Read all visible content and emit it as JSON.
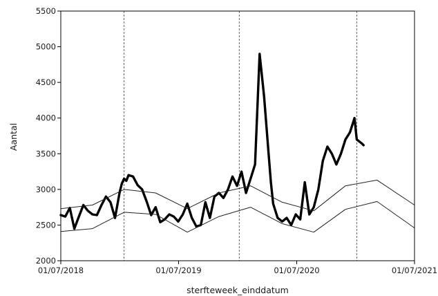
{
  "chart_data": {
    "type": "line",
    "title": "",
    "xlabel": "sterfteweek_einddatum",
    "ylabel": "Aantal",
    "x_range": [
      "2018-07-01",
      "2021-07-01"
    ],
    "x_ticks": [
      "01/07/2018",
      "01/07/2019",
      "01/07/2020",
      "01/07/2021"
    ],
    "ylim": [
      2000,
      5500
    ],
    "y_ticks": [
      2000,
      2500,
      3000,
      3500,
      4000,
      4500,
      5000,
      5500
    ],
    "grid": false,
    "legend": "none",
    "reference_lines_x": [
      "2019-01-13",
      "2020-01-05",
      "2021-01-03"
    ],
    "series": [
      {
        "role": "observed",
        "style": "thick-black",
        "x": [
          "2018-07-01",
          "2018-07-15",
          "2018-07-29",
          "2018-08-12",
          "2018-08-26",
          "2018-09-09",
          "2018-09-23",
          "2018-10-07",
          "2018-10-21",
          "2018-11-04",
          "2018-11-18",
          "2018-12-02",
          "2018-12-16",
          "2018-12-30",
          "2019-01-06",
          "2019-01-13",
          "2019-01-20",
          "2019-01-27",
          "2019-02-10",
          "2019-02-24",
          "2019-03-10",
          "2019-03-24",
          "2019-04-07",
          "2019-04-21",
          "2019-05-05",
          "2019-05-19",
          "2019-06-02",
          "2019-06-16",
          "2019-06-30",
          "2019-07-14",
          "2019-07-28",
          "2019-08-11",
          "2019-08-25",
          "2019-09-08",
          "2019-09-22",
          "2019-10-06",
          "2019-10-20",
          "2019-11-03",
          "2019-11-17",
          "2019-12-01",
          "2019-12-15",
          "2019-12-29",
          "2020-01-12",
          "2020-01-26",
          "2020-02-09",
          "2020-02-23",
          "2020-03-08",
          "2020-03-22",
          "2020-04-05",
          "2020-04-12",
          "2020-04-19",
          "2020-05-03",
          "2020-05-17",
          "2020-05-31",
          "2020-06-14",
          "2020-06-28",
          "2020-07-12",
          "2020-07-26",
          "2020-08-09",
          "2020-08-23",
          "2020-09-06",
          "2020-09-20",
          "2020-10-04",
          "2020-10-18",
          "2020-11-01",
          "2020-11-15",
          "2020-11-29",
          "2020-12-13",
          "2020-12-27",
          "2021-01-03",
          "2021-01-17",
          "2021-01-24"
        ],
        "y": [
          2640,
          2620,
          2740,
          2450,
          2620,
          2780,
          2700,
          2650,
          2640,
          2780,
          2900,
          2820,
          2600,
          2950,
          3080,
          3150,
          3120,
          3200,
          3180,
          3060,
          3000,
          2830,
          2640,
          2750,
          2540,
          2580,
          2650,
          2620,
          2550,
          2650,
          2800,
          2600,
          2480,
          2500,
          2820,
          2600,
          2900,
          2950,
          2880,
          3000,
          3180,
          3050,
          3250,
          2950,
          3150,
          3350,
          4900,
          4300,
          3500,
          3100,
          2800,
          2600,
          2550,
          2600,
          2500,
          2650,
          2580,
          3100,
          2650,
          2750,
          3000,
          3400,
          3600,
          3500,
          3350,
          3500,
          3700,
          3800,
          4000,
          3700,
          3650,
          3620
        ]
      },
      {
        "role": "upper-band",
        "style": "thin",
        "x": [
          "2018-07-01",
          "2018-10-07",
          "2019-01-13",
          "2019-04-21",
          "2019-07-28",
          "2019-11-03",
          "2020-02-09",
          "2020-05-17",
          "2020-08-23",
          "2020-11-29",
          "2021-03-07",
          "2021-07-01"
        ],
        "y": [
          2730,
          2780,
          3000,
          2950,
          2730,
          2950,
          3050,
          2820,
          2700,
          3050,
          3130,
          2780
        ]
      },
      {
        "role": "lower-band",
        "style": "thin",
        "x": [
          "2018-07-01",
          "2018-10-07",
          "2019-01-13",
          "2019-04-21",
          "2019-07-28",
          "2019-11-03",
          "2020-02-09",
          "2020-05-17",
          "2020-08-23",
          "2020-11-29",
          "2021-03-07",
          "2021-07-01"
        ],
        "y": [
          2410,
          2450,
          2680,
          2650,
          2400,
          2620,
          2750,
          2520,
          2400,
          2720,
          2830,
          2460
        ]
      }
    ]
  }
}
